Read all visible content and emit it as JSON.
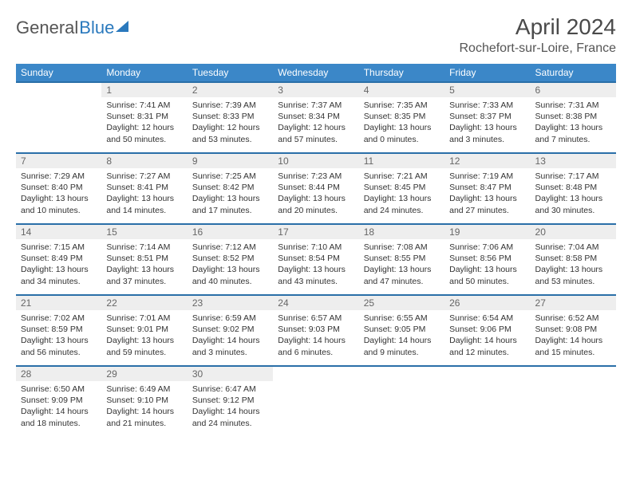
{
  "logo": {
    "part1": "General",
    "part2": "Blue"
  },
  "title": "April 2024",
  "location": "Rochefort-sur-Loire, France",
  "colors": {
    "header_bg": "#3b87c8",
    "daynum_bg": "#eeeeee",
    "row_divider": "#2a6fa8",
    "logo_accent": "#2a79bd",
    "text": "#333333"
  },
  "weekdays": [
    "Sunday",
    "Monday",
    "Tuesday",
    "Wednesday",
    "Thursday",
    "Friday",
    "Saturday"
  ],
  "weeks": [
    {
      "nums": [
        "",
        "1",
        "2",
        "3",
        "4",
        "5",
        "6"
      ],
      "cells": [
        null,
        {
          "sunrise": "7:41 AM",
          "sunset": "8:31 PM",
          "daylight": "12 hours and 50 minutes."
        },
        {
          "sunrise": "7:39 AM",
          "sunset": "8:33 PM",
          "daylight": "12 hours and 53 minutes."
        },
        {
          "sunrise": "7:37 AM",
          "sunset": "8:34 PM",
          "daylight": "12 hours and 57 minutes."
        },
        {
          "sunrise": "7:35 AM",
          "sunset": "8:35 PM",
          "daylight": "13 hours and 0 minutes."
        },
        {
          "sunrise": "7:33 AM",
          "sunset": "8:37 PM",
          "daylight": "13 hours and 3 minutes."
        },
        {
          "sunrise": "7:31 AM",
          "sunset": "8:38 PM",
          "daylight": "13 hours and 7 minutes."
        }
      ]
    },
    {
      "nums": [
        "7",
        "8",
        "9",
        "10",
        "11",
        "12",
        "13"
      ],
      "cells": [
        {
          "sunrise": "7:29 AM",
          "sunset": "8:40 PM",
          "daylight": "13 hours and 10 minutes."
        },
        {
          "sunrise": "7:27 AM",
          "sunset": "8:41 PM",
          "daylight": "13 hours and 14 minutes."
        },
        {
          "sunrise": "7:25 AM",
          "sunset": "8:42 PM",
          "daylight": "13 hours and 17 minutes."
        },
        {
          "sunrise": "7:23 AM",
          "sunset": "8:44 PM",
          "daylight": "13 hours and 20 minutes."
        },
        {
          "sunrise": "7:21 AM",
          "sunset": "8:45 PM",
          "daylight": "13 hours and 24 minutes."
        },
        {
          "sunrise": "7:19 AM",
          "sunset": "8:47 PM",
          "daylight": "13 hours and 27 minutes."
        },
        {
          "sunrise": "7:17 AM",
          "sunset": "8:48 PM",
          "daylight": "13 hours and 30 minutes."
        }
      ]
    },
    {
      "nums": [
        "14",
        "15",
        "16",
        "17",
        "18",
        "19",
        "20"
      ],
      "cells": [
        {
          "sunrise": "7:15 AM",
          "sunset": "8:49 PM",
          "daylight": "13 hours and 34 minutes."
        },
        {
          "sunrise": "7:14 AM",
          "sunset": "8:51 PM",
          "daylight": "13 hours and 37 minutes."
        },
        {
          "sunrise": "7:12 AM",
          "sunset": "8:52 PM",
          "daylight": "13 hours and 40 minutes."
        },
        {
          "sunrise": "7:10 AM",
          "sunset": "8:54 PM",
          "daylight": "13 hours and 43 minutes."
        },
        {
          "sunrise": "7:08 AM",
          "sunset": "8:55 PM",
          "daylight": "13 hours and 47 minutes."
        },
        {
          "sunrise": "7:06 AM",
          "sunset": "8:56 PM",
          "daylight": "13 hours and 50 minutes."
        },
        {
          "sunrise": "7:04 AM",
          "sunset": "8:58 PM",
          "daylight": "13 hours and 53 minutes."
        }
      ]
    },
    {
      "nums": [
        "21",
        "22",
        "23",
        "24",
        "25",
        "26",
        "27"
      ],
      "cells": [
        {
          "sunrise": "7:02 AM",
          "sunset": "8:59 PM",
          "daylight": "13 hours and 56 minutes."
        },
        {
          "sunrise": "7:01 AM",
          "sunset": "9:01 PM",
          "daylight": "13 hours and 59 minutes."
        },
        {
          "sunrise": "6:59 AM",
          "sunset": "9:02 PM",
          "daylight": "14 hours and 3 minutes."
        },
        {
          "sunrise": "6:57 AM",
          "sunset": "9:03 PM",
          "daylight": "14 hours and 6 minutes."
        },
        {
          "sunrise": "6:55 AM",
          "sunset": "9:05 PM",
          "daylight": "14 hours and 9 minutes."
        },
        {
          "sunrise": "6:54 AM",
          "sunset": "9:06 PM",
          "daylight": "14 hours and 12 minutes."
        },
        {
          "sunrise": "6:52 AM",
          "sunset": "9:08 PM",
          "daylight": "14 hours and 15 minutes."
        }
      ]
    },
    {
      "nums": [
        "28",
        "29",
        "30",
        "",
        "",
        "",
        ""
      ],
      "cells": [
        {
          "sunrise": "6:50 AM",
          "sunset": "9:09 PM",
          "daylight": "14 hours and 18 minutes."
        },
        {
          "sunrise": "6:49 AM",
          "sunset": "9:10 PM",
          "daylight": "14 hours and 21 minutes."
        },
        {
          "sunrise": "6:47 AM",
          "sunset": "9:12 PM",
          "daylight": "14 hours and 24 minutes."
        },
        null,
        null,
        null,
        null
      ]
    }
  ],
  "labels": {
    "sunrise": "Sunrise:",
    "sunset": "Sunset:",
    "daylight": "Daylight:"
  }
}
